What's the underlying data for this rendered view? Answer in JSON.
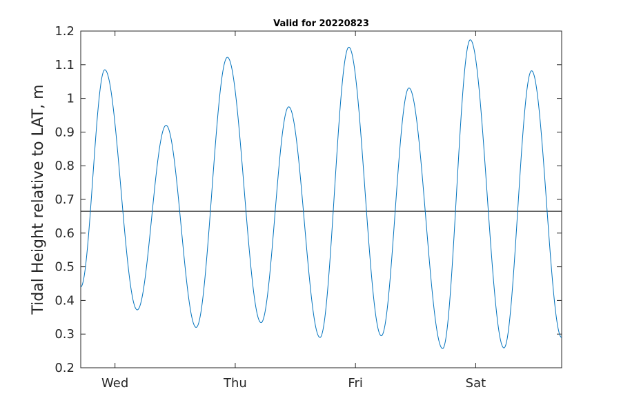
{
  "chart_data": {
    "type": "line",
    "title": "Valid for 20220823",
    "xlabel": "",
    "ylabel": "Tidal Height relative to LAT, m",
    "ylim": [
      0.2,
      1.2
    ],
    "yticks": [
      0.2,
      0.3,
      0.4,
      0.5,
      0.6,
      0.7,
      0.8,
      0.9,
      1.0,
      1.1,
      1.2
    ],
    "ytick_labels": [
      "0.2",
      "0.3",
      "0.4",
      "0.5",
      "0.6",
      "0.7",
      "0.8",
      "0.9",
      "1",
      "1.1",
      "1.2"
    ],
    "x_unit": "days",
    "xlim": [
      0,
      4
    ],
    "xticks": [
      0.285,
      1.285,
      2.285,
      3.285
    ],
    "xtick_labels": [
      "Wed",
      "Thu",
      "Fri",
      "Sat"
    ],
    "reference_line": {
      "y": 0.665,
      "color": "#000000"
    },
    "series": [
      {
        "color": "#0072BD",
        "extrema": [
          [
            0.0,
            0.44
          ],
          [
            0.2,
            1.085
          ],
          [
            0.47,
            0.372
          ],
          [
            0.71,
            0.92
          ],
          [
            0.96,
            0.32
          ],
          [
            1.22,
            1.122
          ],
          [
            1.5,
            0.334
          ],
          [
            1.73,
            0.975
          ],
          [
            1.99,
            0.29
          ],
          [
            2.23,
            1.152
          ],
          [
            2.5,
            0.295
          ],
          [
            2.73,
            1.031
          ],
          [
            3.01,
            0.257
          ],
          [
            3.24,
            1.174
          ],
          [
            3.52,
            0.259
          ],
          [
            3.75,
            1.082
          ],
          [
            4.0,
            0.29
          ]
        ]
      }
    ],
    "grid": false,
    "legend": "none"
  }
}
